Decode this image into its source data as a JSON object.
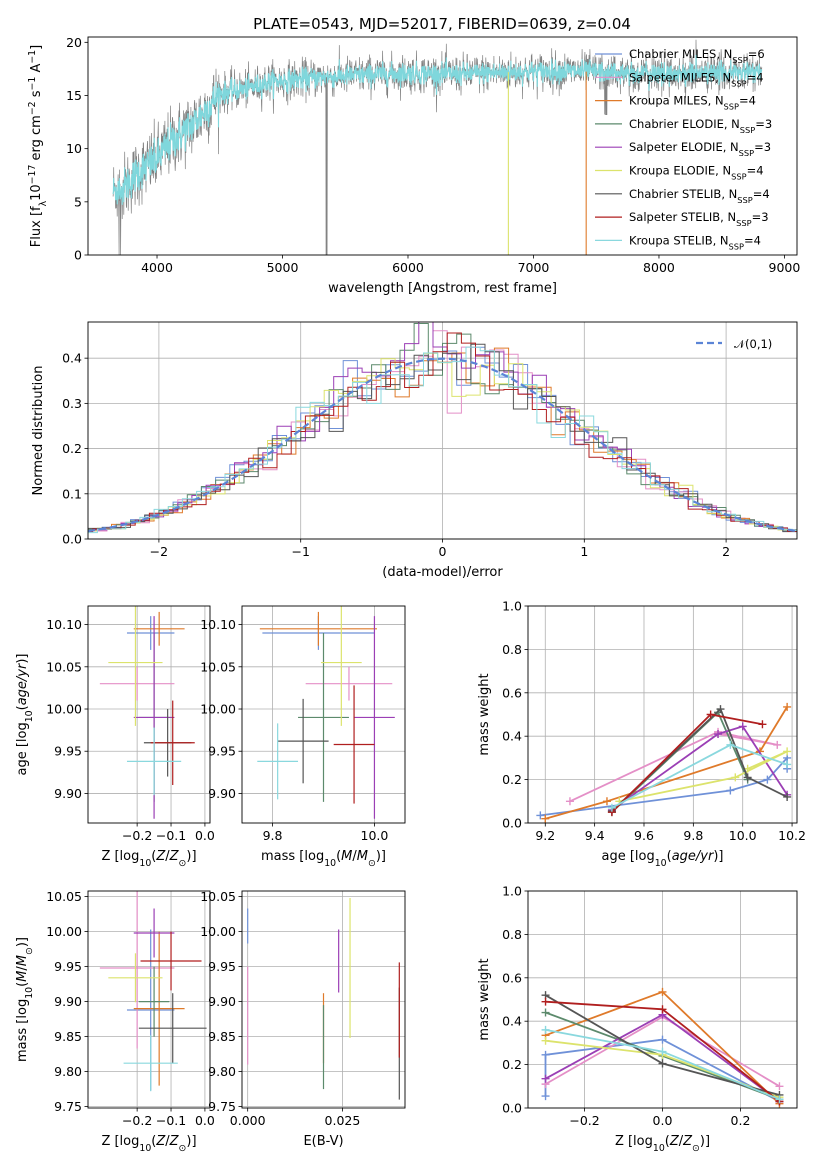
{
  "chart_data": [
    {
      "type": "line",
      "title": "PLATE=0543, MJD=52017, FIBERID=0639, z=0.04",
      "xlabel": "wavelength [Angstrom, rest frame]",
      "ylabel": "Flux [f_λ 10^-17 erg cm^-2 s^-1 A^-1]",
      "xlim": [
        3450,
        9100
      ],
      "ylim": [
        0,
        20.5
      ],
      "xticks": [
        "4000",
        "5000",
        "6000",
        "7000",
        "8000",
        "9000"
      ],
      "yticks": [
        "0",
        "5",
        "10",
        "15",
        "20"
      ],
      "data_color": "#808080",
      "series_overlay_color": "#7fd7dc",
      "continuum": [
        [
          3650,
          6.0
        ],
        [
          3750,
          6.5
        ],
        [
          3850,
          7.8
        ],
        [
          4000,
          9.0
        ],
        [
          4100,
          10.5
        ],
        [
          4200,
          11.5
        ],
        [
          4300,
          12.5
        ],
        [
          4400,
          13.8
        ],
        [
          4500,
          15.2
        ],
        [
          4700,
          15.6
        ],
        [
          4900,
          16.3
        ],
        [
          5200,
          16.6
        ],
        [
          5600,
          16.9
        ],
        [
          6000,
          17.1
        ],
        [
          6400,
          17.0
        ],
        [
          6800,
          17.2
        ],
        [
          7200,
          17.3
        ],
        [
          7600,
          17.2
        ],
        [
          8000,
          17.0
        ],
        [
          8400,
          17.1
        ],
        [
          8800,
          17.2
        ]
      ],
      "legend": [
        {
          "label": "Chabrier MILES, N_SSP=6",
          "color": "#6f91d8"
        },
        {
          "label": "Salpeter MILES, N_SSP=4",
          "color": "#e48fc7"
        },
        {
          "label": "Kroupa MILES, N_SSP=4",
          "color": "#df7a2a"
        },
        {
          "label": "Chabrier ELODIE, N_SSP=3",
          "color": "#5c8a6c"
        },
        {
          "label": "Salpeter ELODIE, N_SSP=3",
          "color": "#9b3fb5"
        },
        {
          "label": "Kroupa ELODIE, N_SSP=4",
          "color": "#dce36c"
        },
        {
          "label": "Chabrier STELIB, N_SSP=4",
          "color": "#555555"
        },
        {
          "label": "Salpeter STELIB, N_SSP=3",
          "color": "#b01f1f"
        },
        {
          "label": "Kroupa STELIB, N_SSP=4",
          "color": "#8ad8de"
        }
      ],
      "legend_placement": "right",
      "cutoffs": [
        {
          "wavelength": 6800,
          "color": "#dce36c"
        },
        {
          "wavelength": 7420,
          "color": "#df7a2a"
        },
        {
          "wavelength": 5350,
          "color": "#808080"
        }
      ]
    },
    {
      "type": "histogram",
      "xlabel": "(data-model)/error",
      "ylabel": "Normed distribution",
      "xlim": [
        -2.5,
        2.5
      ],
      "ylim": [
        0,
        0.48
      ],
      "xticks": [
        "−2",
        "−1",
        "0",
        "1",
        "2"
      ],
      "yticks": [
        "0.0",
        "0.1",
        "0.2",
        "0.3",
        "0.4"
      ],
      "grid": true,
      "bin_width": 0.1,
      "reference_curve": {
        "label": "𝒩(0,1)",
        "color": "#5b84d6",
        "style": "dashed"
      },
      "legend_placement": "top-right"
    },
    {
      "type": "scatter",
      "xlabel": "Z [log10(Z/Z⊙)]",
      "ylabel": "age  [log10(age/yr)]",
      "xlim": [
        -0.345,
        0.015
      ],
      "ylim": [
        9.865,
        10.122
      ],
      "xticks": [
        "−0.2",
        "−0.1",
        "0.0"
      ],
      "yticks": [
        "9.90",
        "9.95",
        "10.00",
        "10.05",
        "10.10"
      ],
      "grid": true,
      "points": [
        {
          "x": -0.16,
          "xerr": 0.07,
          "y": 10.09,
          "yerr": 0.02
        },
        {
          "x": -0.2,
          "xerr": 0.11,
          "y": 10.03,
          "yerr": 0.02
        },
        {
          "x": -0.135,
          "xerr": 0.075,
          "y": 10.095,
          "yerr": 0.02
        },
        {
          "x": -0.15,
          "xerr": 0.045,
          "y": 9.99,
          "yerr": 0.1
        },
        {
          "x": -0.15,
          "xerr": 0.06,
          "y": 9.99,
          "yerr": 0.12
        },
        {
          "x": -0.205,
          "xerr": 0.08,
          "y": 10.055,
          "yerr": 0.075
        },
        {
          "x": -0.11,
          "xerr": 0.07,
          "y": 9.96,
          "yerr": 0.04
        },
        {
          "x": -0.095,
          "xerr": 0.065,
          "y": 9.96,
          "yerr": 0.05
        },
        {
          "x": -0.15,
          "xerr": 0.08,
          "y": 9.938,
          "yerr": 0.04
        }
      ]
    },
    {
      "type": "scatter",
      "xlabel": "mass [log10(M/M⊙)]",
      "ylabel": "",
      "xlim": [
        9.74,
        10.06
      ],
      "ylim": [
        9.865,
        10.122
      ],
      "xticks": [
        "9.8",
        "10.0"
      ],
      "yticks": [
        "9.90",
        "9.95",
        "10.00",
        "10.05",
        "10.10"
      ],
      "grid": true,
      "points": [
        {
          "x": 9.89,
          "xerr": 0.11,
          "y": 10.09,
          "yerr": 0.02
        },
        {
          "x": 9.95,
          "xerr": 0.085,
          "y": 10.03,
          "yerr": 0.02
        },
        {
          "x": 9.89,
          "xerr": 0.115,
          "y": 10.095,
          "yerr": 0.02
        },
        {
          "x": 9.9,
          "xerr": 0.05,
          "y": 9.99,
          "yerr": 0.1
        },
        {
          "x": 10.0,
          "xerr": 0.04,
          "y": 9.99,
          "yerr": 0.12
        },
        {
          "x": 9.935,
          "xerr": 0.04,
          "y": 10.055,
          "yerr": 0.075
        },
        {
          "x": 9.86,
          "xerr": 0.05,
          "y": 9.962,
          "yerr": 0.05
        },
        {
          "x": 9.96,
          "xerr": 0.04,
          "y": 9.958,
          "yerr": 0.07
        },
        {
          "x": 9.81,
          "xerr": 0.04,
          "y": 9.938,
          "yerr": 0.045
        }
      ]
    },
    {
      "type": "line",
      "xlabel": "age  [log10(age/yr)]",
      "ylabel": "mass weight",
      "xlim": [
        9.13,
        10.22
      ],
      "ylim": [
        0,
        1.0
      ],
      "xticks": [
        "9.2",
        "9.4",
        "9.6",
        "9.8",
        "10.0",
        "10.2"
      ],
      "yticks": [
        "0.0",
        "0.2",
        "0.4",
        "0.6",
        "0.8",
        "1.0"
      ],
      "grid": true,
      "series": [
        {
          "color": "#6f91d8",
          "points": [
            [
              9.18,
              0.035
            ],
            [
              9.95,
              0.15
            ],
            [
              10.1,
              0.2
            ],
            [
              10.18,
              0.3
            ],
            [
              10.18,
              0.25
            ]
          ]
        },
        {
          "color": "#e48fc7",
          "points": [
            [
              9.3,
              0.1
            ],
            [
              9.9,
              0.42
            ],
            [
              10.14,
              0.36
            ],
            [
              9.9,
              0.41
            ]
          ]
        },
        {
          "color": "#df7a2a",
          "points": [
            [
              9.2,
              0.02
            ],
            [
              9.45,
              0.1
            ],
            [
              10.07,
              0.33
            ],
            [
              10.18,
              0.535
            ]
          ]
        },
        {
          "color": "#5c8a6c",
          "points": [
            [
              9.47,
              0.05
            ],
            [
              9.9,
              0.51
            ],
            [
              10.02,
              0.2
            ]
          ]
        },
        {
          "color": "#9b3fb5",
          "points": [
            [
              9.47,
              0.06
            ],
            [
              9.9,
              0.41
            ],
            [
              10.0,
              0.445
            ],
            [
              10.18,
              0.13
            ]
          ]
        },
        {
          "color": "#dce36c",
          "points": [
            [
              9.5,
              0.1
            ],
            [
              9.97,
              0.21
            ],
            [
              10.18,
              0.33
            ],
            [
              10.02,
              0.25
            ]
          ]
        },
        {
          "color": "#555555",
          "points": [
            [
              9.47,
              0.055
            ],
            [
              9.91,
              0.525
            ],
            [
              10.02,
              0.21
            ],
            [
              10.18,
              0.12
            ]
          ]
        },
        {
          "color": "#b01f1f",
          "points": [
            [
              9.47,
              0.05
            ],
            [
              9.87,
              0.5
            ],
            [
              10.08,
              0.455
            ]
          ]
        },
        {
          "color": "#8ad8de",
          "points": [
            [
              9.47,
              0.07
            ],
            [
              9.95,
              0.36
            ],
            [
              10.18,
              0.27
            ]
          ]
        }
      ]
    },
    {
      "type": "scatter",
      "xlabel": "Z [log10(Z/Z⊙)]",
      "ylabel": "mass [log10(M/M⊙)]",
      "xlim": [
        -0.345,
        0.015
      ],
      "ylim": [
        9.748,
        10.058
      ],
      "xticks": [
        "−0.2",
        "−0.1",
        "0.0"
      ],
      "yticks": [
        "9.75",
        "9.80",
        "9.85",
        "9.90",
        "9.95",
        "10.00",
        "10.05"
      ],
      "grid": true,
      "points": [
        {
          "x": -0.16,
          "xerr": 0.07,
          "y": 9.888,
          "yerr": 0.115
        },
        {
          "x": -0.2,
          "xerr": 0.11,
          "y": 9.948,
          "yerr": 0.115
        },
        {
          "x": -0.135,
          "xerr": 0.075,
          "y": 9.89,
          "yerr": 0.11
        },
        {
          "x": -0.15,
          "xerr": 0.045,
          "y": 9.9,
          "yerr": 0.05
        },
        {
          "x": -0.15,
          "xerr": 0.06,
          "y": 9.998,
          "yerr": 0.035
        },
        {
          "x": -0.205,
          "xerr": 0.08,
          "y": 9.934,
          "yerr": 0.035
        },
        {
          "x": -0.095,
          "xerr": 0.1,
          "y": 9.862,
          "yerr": 0.05
        },
        {
          "x": -0.1,
          "xerr": 0.09,
          "y": 9.958,
          "yerr": 0.042
        },
        {
          "x": -0.16,
          "xerr": 0.08,
          "y": 9.812,
          "yerr": 0.04
        }
      ]
    },
    {
      "type": "scatter",
      "xlabel": "E(B-V)",
      "ylabel": "",
      "xlim": [
        -0.0015,
        0.0415
      ],
      "ylim": [
        9.748,
        10.058
      ],
      "xticks": [
        "0.000",
        "0.025"
      ],
      "yticks": [
        "9.75",
        "9.80",
        "9.85",
        "9.90",
        "9.95",
        "10.00",
        "10.05"
      ],
      "grid": true,
      "points": [
        {
          "x": 0.0,
          "y": 10.008,
          "yerr": 0.025
        },
        {
          "x": 0.0,
          "y": 9.88,
          "yerr": 0.07
        },
        {
          "x": 0.02,
          "y": 9.862,
          "yerr": 0.05
        },
        {
          "x": 0.02,
          "y": 9.835,
          "yerr": 0.06
        },
        {
          "x": 0.024,
          "y": 9.958,
          "yerr": 0.045
        },
        {
          "x": 0.027,
          "y": 9.948,
          "yerr": 0.1
        },
        {
          "x": 0.04,
          "y": 9.84,
          "yerr": 0.08
        },
        {
          "x": 0.04,
          "y": 9.888,
          "yerr": 0.068
        }
      ]
    },
    {
      "type": "line",
      "xlabel": "Z [log10(Z/Z⊙)]",
      "ylabel": "mass weight",
      "xlim": [
        -0.345,
        0.345
      ],
      "ylim": [
        0,
        1.0
      ],
      "xticks": [
        "−0.2",
        "0.0",
        "0.2"
      ],
      "yticks": [
        "0.0",
        "0.2",
        "0.4",
        "0.6",
        "0.8",
        "1.0"
      ],
      "grid": true,
      "series": [
        {
          "color": "#6f91d8",
          "points": [
            [
              -0.3,
              0.055
            ],
            [
              -0.3,
              0.245
            ],
            [
              0.0,
              0.315
            ],
            [
              0.3,
              0.03
            ]
          ]
        },
        {
          "color": "#e48fc7",
          "points": [
            [
              -0.3,
              0.11
            ],
            [
              0.0,
              0.42
            ],
            [
              0.3,
              0.1
            ]
          ]
        },
        {
          "color": "#df7a2a",
          "points": [
            [
              -0.3,
              0.335
            ],
            [
              0.0,
              0.535
            ],
            [
              0.3,
              0.02
            ]
          ]
        },
        {
          "color": "#5c8a6c",
          "points": [
            [
              -0.3,
              0.44
            ],
            [
              0.0,
              0.24
            ],
            [
              0.3,
              0.04
            ]
          ]
        },
        {
          "color": "#9b3fb5",
          "points": [
            [
              -0.3,
              0.135
            ],
            [
              0.0,
              0.43
            ],
            [
              0.3,
              0.03
            ]
          ]
        },
        {
          "color": "#dce36c",
          "points": [
            [
              -0.3,
              0.31
            ],
            [
              0.0,
              0.245
            ],
            [
              0.3,
              0.05
            ]
          ]
        },
        {
          "color": "#555555",
          "points": [
            [
              -0.3,
              0.52
            ],
            [
              0.0,
              0.205
            ],
            [
              0.3,
              0.06
            ]
          ]
        },
        {
          "color": "#b01f1f",
          "points": [
            [
              -0.3,
              0.49
            ],
            [
              0.0,
              0.455
            ],
            [
              0.3,
              0.03
            ]
          ]
        },
        {
          "color": "#8ad8de",
          "points": [
            [
              -0.3,
              0.36
            ],
            [
              0.0,
              0.26
            ],
            [
              0.3,
              0.04
            ]
          ]
        }
      ]
    }
  ],
  "colors": [
    "#6f91d8",
    "#e48fc7",
    "#df7a2a",
    "#5c8a6c",
    "#9b3fb5",
    "#dce36c",
    "#555555",
    "#b01f1f",
    "#8ad8de"
  ]
}
